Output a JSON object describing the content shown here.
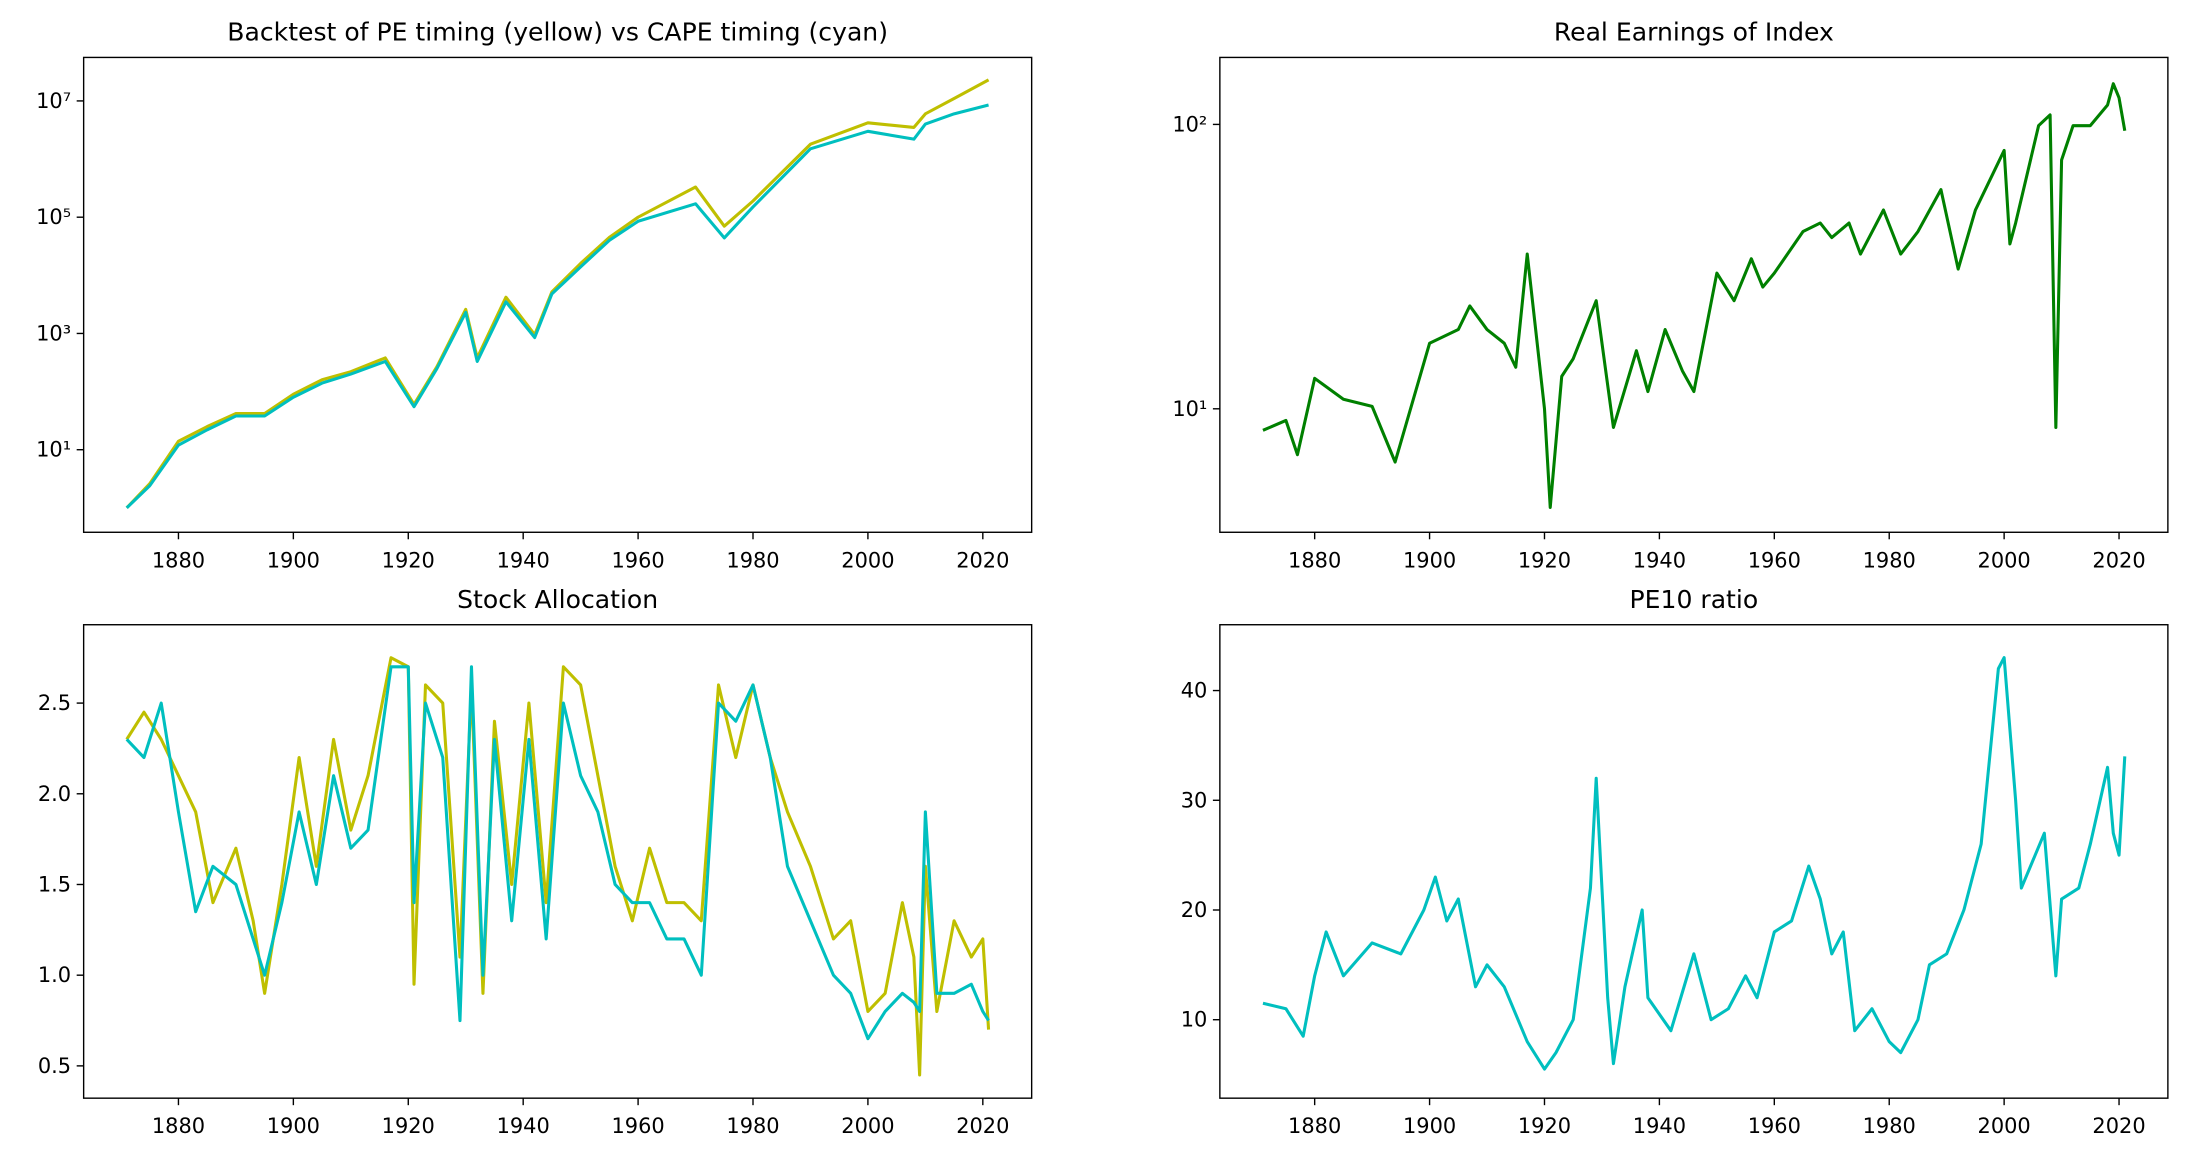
{
  "chart_data": [
    {
      "type": "line",
      "title": "Backtest of PE timing (yellow) vs CAPE timing (cyan)",
      "yscale": "log",
      "x": [
        1871,
        1875,
        1880,
        1885,
        1890,
        1895,
        1900,
        1905,
        1910,
        1916,
        1921,
        1925,
        1930,
        1932,
        1937,
        1942,
        1945,
        1950,
        1955,
        1960,
        1970,
        1975,
        1980,
        1990,
        2000,
        2008,
        2010,
        2015,
        2021
      ],
      "series": [
        {
          "color": "#bfbf00",
          "values": [
            1,
            2.6,
            14,
            25,
            42,
            42,
            90,
            160,
            220,
            380,
            60,
            270,
            2600,
            380,
            4200,
            950,
            5200,
            16000,
            45000,
            100000,
            330000,
            70000,
            190000,
            1800000,
            4200000,
            3500000,
            6000000,
            11000000,
            23000000
          ]
        },
        {
          "color": "#00bfbf",
          "values": [
            1,
            2.4,
            12,
            22,
            38,
            38,
            80,
            140,
            200,
            330,
            55,
            250,
            2300,
            330,
            3500,
            850,
            4800,
            14000,
            40000,
            85000,
            170000,
            44000,
            150000,
            1500000,
            3000000,
            2200000,
            4000000,
            6000000,
            8500000
          ]
        }
      ],
      "xlim": [
        1863.5,
        2028.5
      ],
      "xticks": [
        1880,
        1900,
        1920,
        1940,
        1960,
        1980,
        2000,
        2020
      ],
      "ylim": [
        0.38,
        56000000
      ],
      "yticks": [
        {
          "value": 10,
          "label": "10¹"
        },
        {
          "value": 1000,
          "label": "10³"
        },
        {
          "value": 100000,
          "label": "10⁵"
        },
        {
          "value": 10000000,
          "label": "10⁷"
        }
      ]
    },
    {
      "type": "line",
      "title": "Real Earnings of Index",
      "yscale": "log",
      "x": [
        1871,
        1875,
        1877,
        1880,
        1885,
        1890,
        1894,
        1900,
        1905,
        1907,
        1910,
        1913,
        1915,
        1917,
        1920,
        1921,
        1923,
        1925,
        1929,
        1932,
        1936,
        1938,
        1941,
        1944,
        1946,
        1950,
        1953,
        1956,
        1958,
        1960,
        1965,
        1968,
        1970,
        1973,
        1975,
        1979,
        1982,
        1985,
        1989,
        1992,
        1995,
        2000,
        2001,
        2002,
        2006,
        2008,
        2009,
        2010,
        2012,
        2015,
        2018,
        2019,
        2020,
        2021
      ],
      "series": [
        {
          "color": "#008000",
          "values": [
            8.4,
            9.1,
            6.9,
            12.8,
            10.8,
            10.2,
            6.5,
            17,
            19,
            23,
            19,
            17,
            14,
            35,
            10,
            4.5,
            13,
            15,
            24,
            8.6,
            16,
            11.5,
            19,
            13.6,
            11.5,
            30,
            24,
            33.7,
            26.8,
            30,
            42,
            45,
            40,
            45,
            35,
            50,
            35,
            42,
            59,
            31,
            50,
            81,
            38,
            45,
            99,
            108,
            8.6,
            75,
            99,
            99,
            117,
            139,
            124,
            95
          ]
        }
      ],
      "xlim": [
        1863.5,
        2028.5
      ],
      "xticks": [
        1880,
        1900,
        1920,
        1940,
        1960,
        1980,
        2000,
        2020
      ],
      "ylim": [
        3.68,
        172
      ],
      "yticks": [
        {
          "value": 10,
          "label": "10¹"
        },
        {
          "value": 100,
          "label": "10²"
        }
      ]
    },
    {
      "type": "line",
      "title": "Stock Allocation",
      "yscale": "linear",
      "x": [
        1871,
        1874,
        1877,
        1880,
        1883,
        1886,
        1890,
        1893,
        1895,
        1898,
        1901,
        1904,
        1907,
        1910,
        1913,
        1917,
        1920,
        1921,
        1923,
        1926,
        1929,
        1931,
        1933,
        1935,
        1938,
        1941,
        1944,
        1947,
        1950,
        1953,
        1956,
        1959,
        1962,
        1965,
        1968,
        1971,
        1974,
        1977,
        1980,
        1983,
        1986,
        1990,
        1994,
        1997,
        2000,
        2003,
        2006,
        2008,
        2009,
        2010,
        2012,
        2015,
        2018,
        2020,
        2021
      ],
      "series": [
        {
          "color": "#bfbf00",
          "values": [
            2.3,
            2.45,
            2.3,
            2.1,
            1.9,
            1.4,
            1.7,
            1.3,
            0.9,
            1.5,
            2.2,
            1.6,
            2.3,
            1.8,
            2.1,
            2.75,
            2.7,
            0.95,
            2.6,
            2.5,
            1.1,
            2.6,
            0.9,
            2.4,
            1.5,
            2.5,
            1.4,
            2.7,
            2.6,
            2.1,
            1.6,
            1.3,
            1.7,
            1.4,
            1.4,
            1.3,
            2.6,
            2.2,
            2.6,
            2.2,
            1.9,
            1.6,
            1.2,
            1.3,
            0.8,
            0.9,
            1.4,
            1.1,
            0.45,
            1.6,
            0.8,
            1.3,
            1.1,
            1.2,
            0.7
          ]
        },
        {
          "color": "#00bfbf",
          "values": [
            2.3,
            2.2,
            2.5,
            1.9,
            1.35,
            1.6,
            1.5,
            1.2,
            1.0,
            1.4,
            1.9,
            1.5,
            2.1,
            1.7,
            1.8,
            2.7,
            2.7,
            1.4,
            2.5,
            2.2,
            0.75,
            2.7,
            1.0,
            2.3,
            1.3,
            2.3,
            1.2,
            2.5,
            2.1,
            1.9,
            1.5,
            1.4,
            1.4,
            1.2,
            1.2,
            1.0,
            2.5,
            2.4,
            2.6,
            2.2,
            1.6,
            1.3,
            1.0,
            0.9,
            0.65,
            0.8,
            0.9,
            0.85,
            0.8,
            1.9,
            0.9,
            0.9,
            0.95,
            0.8,
            0.75
          ]
        }
      ],
      "xlim": [
        1863.5,
        2028.5
      ],
      "xticks": [
        1880,
        1900,
        1920,
        1940,
        1960,
        1980,
        2000,
        2020
      ],
      "ylim": [
        0.322,
        2.932
      ],
      "yticks": [
        0.5,
        {
          "value": 1,
          "label": "1.0"
        },
        1.5,
        {
          "value": 2,
          "label": "2.0"
        },
        2.5
      ]
    },
    {
      "type": "line",
      "title": "PE10 ratio",
      "yscale": "linear",
      "x": [
        1871,
        1875,
        1878,
        1880,
        1882,
        1885,
        1890,
        1895,
        1899,
        1901,
        1903,
        1905,
        1908,
        1910,
        1913,
        1917,
        1920,
        1922,
        1925,
        1928,
        1929,
        1931,
        1932,
        1934,
        1937,
        1938,
        1942,
        1946,
        1949,
        1952,
        1955,
        1957,
        1960,
        1963,
        1966,
        1968,
        1970,
        1972,
        1974,
        1977,
        1980,
        1982,
        1985,
        1987,
        1990,
        1993,
        1996,
        1999,
        2000,
        2002,
        2003,
        2007,
        2009,
        2010,
        2013,
        2015,
        2018,
        2019,
        2020,
        2021
      ],
      "series": [
        {
          "color": "#00bfbf",
          "values": [
            11.5,
            11,
            8.5,
            14,
            18,
            14,
            17,
            16,
            20,
            23,
            19,
            21,
            13,
            15,
            13,
            8,
            5.5,
            7,
            10,
            22,
            32,
            12,
            6,
            13,
            20,
            12,
            9,
            16,
            10,
            11,
            14,
            12,
            18,
            19,
            24,
            21,
            16,
            18,
            9,
            11,
            8,
            7,
            10,
            15,
            16,
            20,
            26,
            42,
            43,
            30,
            22,
            27,
            14,
            21,
            22,
            26,
            33,
            27,
            25,
            34
          ]
        }
      ],
      "xlim": [
        1863.5,
        2028.5
      ],
      "xticks": [
        1880,
        1900,
        1920,
        1940,
        1960,
        1980,
        2000,
        2020
      ],
      "ylim": [
        2.85,
        46.0
      ],
      "yticks": [
        10,
        20,
        30,
        40
      ]
    }
  ]
}
